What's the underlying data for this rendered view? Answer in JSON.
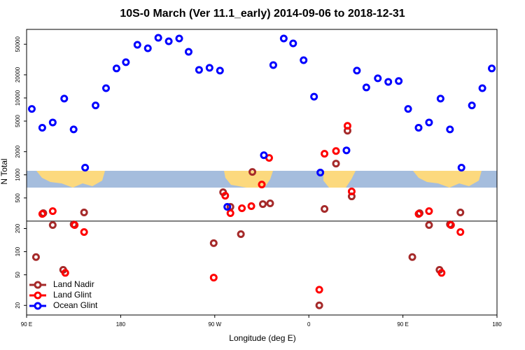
{
  "chart_data": {
    "type": "scatter",
    "title": "10S-0 March (Ver 11.1_early)   2014-09-06 to 2018-12-31",
    "x_label": "Longitude (deg E)",
    "y_label": "N Total",
    "xlim": [
      -270,
      180
    ],
    "xticks": [
      {
        "value": -270,
        "label": "90 E"
      },
      {
        "value": -180,
        "label": "180"
      },
      {
        "value": -90,
        "label": "90 W"
      },
      0,
      {
        "value": 90,
        "label": "90 E"
      },
      180
    ],
    "ylim": [
      15,
      78000
    ],
    "log_y": true,
    "yticks": [
      20,
      50,
      100,
      200,
      500,
      1000,
      2000,
      5000,
      10000,
      20000,
      50000
    ],
    "hline": 250,
    "legend": "bottomleft",
    "series": [
      {
        "name": "Land Nadir",
        "color": "#a52a2a",
        "x": [
          -261,
          -254,
          -245,
          -235,
          -225,
          -215,
          -91,
          -82,
          -75,
          -65,
          -54,
          -44,
          -37,
          10,
          15,
          26,
          37,
          41,
          99,
          106,
          115,
          125,
          135,
          145
        ],
        "values": [
          85,
          317,
          222,
          58,
          227,
          324,
          129,
          594,
          383,
          169,
          1090,
          416,
          425,
          20,
          360,
          1400,
          3750,
          524,
          85,
          317,
          222,
          58,
          227,
          324
        ]
      },
      {
        "name": "Land Glint",
        "color": "#ff0000",
        "x": [
          -255,
          -245,
          -233,
          -224,
          -215,
          -91,
          -80,
          -75,
          -64,
          -55,
          -45,
          -38,
          10,
          15,
          26,
          37,
          41,
          105,
          115,
          127,
          136,
          145
        ],
        "values": [
          310,
          337,
          53,
          222,
          180,
          46,
          535,
          317,
          367,
          391,
          748,
          1660,
          32,
          1880,
          2040,
          4340,
          607,
          310,
          337,
          53,
          222,
          180
        ]
      },
      {
        "name": "Ocean Glint",
        "color": "#0000ff",
        "x": [
          -265,
          -255,
          -245,
          -234,
          -225,
          -214,
          -204,
          -194,
          -184,
          -175,
          -164,
          -154,
          -144,
          -134,
          -124,
          -115,
          -105,
          -95,
          -85,
          -78,
          -43,
          -34,
          -24,
          -15,
          -5,
          5,
          11,
          36,
          46,
          55,
          66,
          76,
          86,
          95,
          105,
          115,
          126,
          135,
          146,
          156,
          166,
          175
        ],
        "values": [
          7200,
          4100,
          4800,
          9800,
          3900,
          1240,
          8000,
          13400,
          24200,
          29200,
          49200,
          44300,
          60600,
          54600,
          59400,
          39900,
          23200,
          24700,
          22700,
          383,
          1800,
          26800,
          59400,
          51300,
          31000,
          10400,
          1070,
          2080,
          22700,
          13700,
          18000,
          16200,
          16600,
          7200,
          4100,
          4800,
          9800,
          3900,
          1240,
          8000,
          13400,
          24200
        ]
      }
    ]
  }
}
